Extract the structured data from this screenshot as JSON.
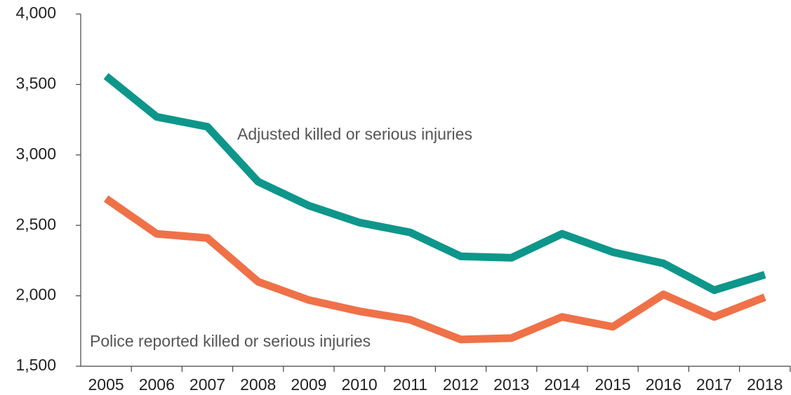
{
  "chart_data": {
    "type": "line",
    "categories": [
      "2005",
      "2006",
      "2007",
      "2008",
      "2009",
      "2010",
      "2011",
      "2012",
      "2013",
      "2014",
      "2015",
      "2016",
      "2017",
      "2018"
    ],
    "series": [
      {
        "name": "Adjusted killed or serious injuries",
        "color": "#0e968b",
        "values": [
          3560,
          3270,
          3200,
          2810,
          2640,
          2520,
          2450,
          2280,
          2270,
          2440,
          2310,
          2230,
          2040,
          2150
        ]
      },
      {
        "name": "Police reported killed or serious injuries",
        "color": "#ef7148",
        "values": [
          2690,
          2440,
          2410,
          2100,
          1970,
          1890,
          1830,
          1690,
          1700,
          1850,
          1780,
          2010,
          1850,
          1990
        ]
      }
    ],
    "ylim": [
      1500,
      4000
    ],
    "yticks": [
      {
        "value": 1500,
        "label": "1,500"
      },
      {
        "value": 2000,
        "label": "2,000"
      },
      {
        "value": 2500,
        "label": "2,500"
      },
      {
        "value": 3000,
        "label": "3,000"
      },
      {
        "value": 3500,
        "label": "3,500"
      },
      {
        "value": 4000,
        "label": "4,000"
      }
    ],
    "grid": false
  }
}
